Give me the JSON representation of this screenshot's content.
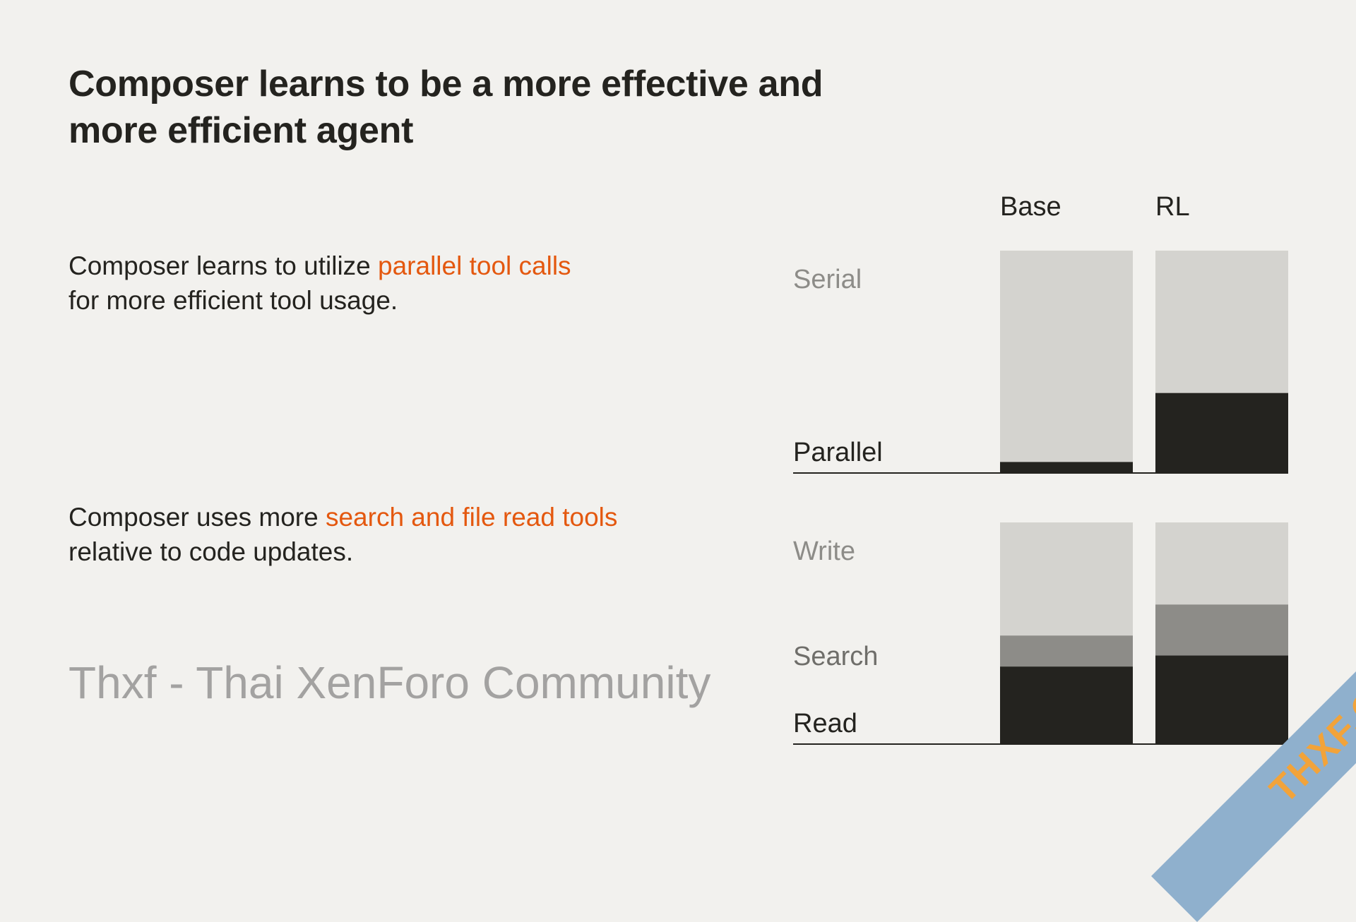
{
  "title": "Composer learns to be a more effective and more efficient agent",
  "sections": [
    {
      "text_before": "Composer learns to utilize ",
      "highlight": "parallel tool calls",
      "text_after": " for more efficient tool usage."
    },
    {
      "text_before": "Composer uses more ",
      "highlight": "search and file read tools",
      "text_after": " relative to code updates."
    }
  ],
  "colors": {
    "background": "#f2f1ee",
    "highlight": "#e4580f",
    "dark": "#24231f",
    "mid": "#8d8c88",
    "light": "#d4d3cf"
  },
  "chart_data": [
    {
      "type": "bar",
      "stacked": true,
      "normalized": true,
      "categories": [
        "Base",
        "RL"
      ],
      "series": [
        {
          "name": "Parallel",
          "values": [
            5,
            36
          ],
          "color": "#24231f"
        },
        {
          "name": "Serial",
          "values": [
            95,
            64
          ],
          "color": "#d4d3cf"
        }
      ],
      "ylim": [
        0,
        100
      ]
    },
    {
      "type": "bar",
      "stacked": true,
      "normalized": true,
      "categories": [
        "Base",
        "RL"
      ],
      "series": [
        {
          "name": "Read",
          "values": [
            35,
            40
          ],
          "color": "#24231f"
        },
        {
          "name": "Search",
          "values": [
            14,
            23
          ],
          "color": "#8d8c88"
        },
        {
          "name": "Write",
          "values": [
            51,
            37
          ],
          "color": "#d4d3cf"
        }
      ],
      "ylim": [
        0,
        100
      ]
    }
  ],
  "watermark": "Thxf - Thai XenForo Community",
  "corner_badge": "THXF.ORG"
}
